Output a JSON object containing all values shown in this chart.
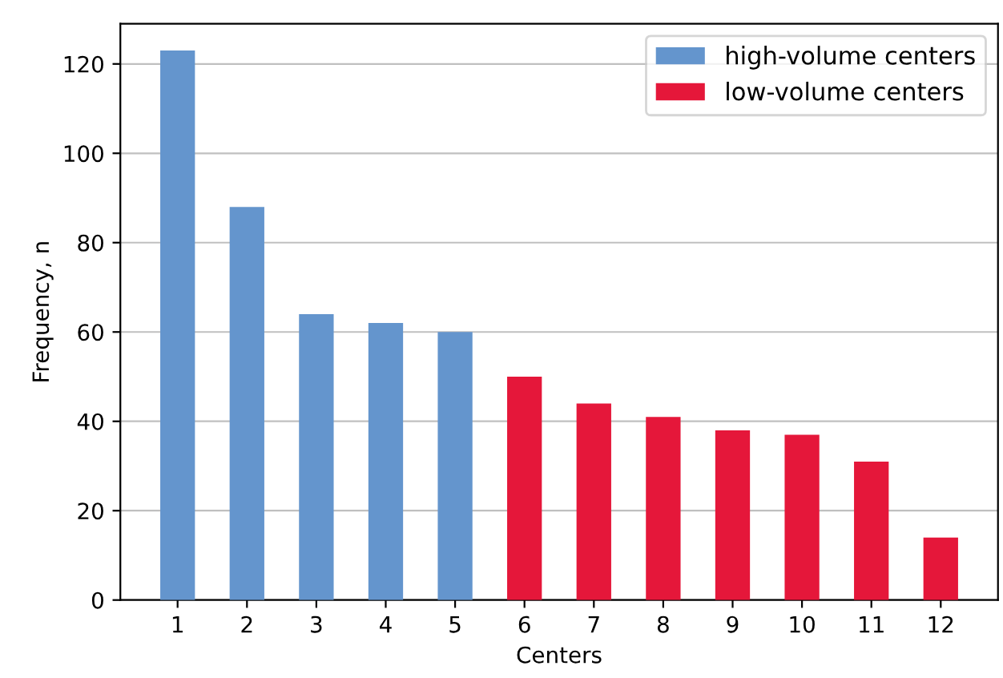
{
  "chart_data": {
    "type": "bar",
    "xlabel": "Centers",
    "ylabel": "Frequency, n",
    "categories": [
      "1",
      "2",
      "3",
      "4",
      "5",
      "6",
      "7",
      "8",
      "9",
      "10",
      "11",
      "12"
    ],
    "series": [
      {
        "name": "high-volume centers",
        "color": "#6495cd",
        "values": [
          123,
          88,
          64,
          62,
          60,
          null,
          null,
          null,
          null,
          null,
          null,
          null
        ]
      },
      {
        "name": "low-volume centers",
        "color": "#e5173a",
        "values": [
          null,
          null,
          null,
          null,
          null,
          50,
          44,
          41,
          38,
          37,
          31,
          14
        ]
      }
    ],
    "ylim": [
      0,
      129
    ],
    "yticks": [
      0,
      20,
      40,
      60,
      80,
      100,
      120
    ],
    "grid": "y",
    "legend": "top right"
  }
}
